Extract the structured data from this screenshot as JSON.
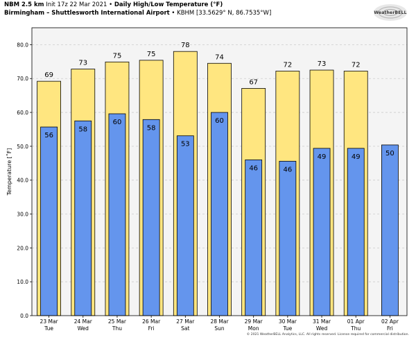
{
  "header": {
    "line1_model": "NBM 2.5 km",
    "line1_init": "Init 17z 22 Mar 2021",
    "line1_sep": "•",
    "line1_product": "Daily High/Low Temperature (°F)",
    "line2_station": "Birmingham – Shuttlesworth International Airport",
    "line2_id": "• KBHM [33.5629° N, 86.7535°W]"
  },
  "logo": {
    "text": "WeatherBELL",
    "icon": "weatherbell-swirl-logo"
  },
  "copyright": "© 2021 WeatherBELL Analytics, LLC. All rights reserved. License required for commercial distribution.",
  "colors": {
    "high_fill": "#ffe680",
    "low_fill": "#6495ed",
    "bar_edge": "#000000",
    "plot_bg": "#f4f4f4",
    "grid": "#cccccc"
  },
  "chart_data": {
    "type": "bar",
    "title": "Daily High/Low Temperature (°F)",
    "ylabel": "Temperature [˚F]",
    "xlabel": "",
    "ylim": [
      0,
      85
    ],
    "yticks": [
      "0.0",
      "10.0",
      "20.0",
      "30.0",
      "40.0",
      "50.0",
      "60.0",
      "70.0",
      "80.0"
    ],
    "ytick_values": [
      0,
      10,
      20,
      30,
      40,
      50,
      60,
      70,
      80
    ],
    "grid": "horizontal dashed",
    "categories": [
      {
        "date": "23 Mar",
        "day": "Tue"
      },
      {
        "date": "24 Mar",
        "day": "Wed"
      },
      {
        "date": "25 Mar",
        "day": "Thu"
      },
      {
        "date": "26 Mar",
        "day": "Fri"
      },
      {
        "date": "27 Mar",
        "day": "Sat"
      },
      {
        "date": "28 Mar",
        "day": "Sun"
      },
      {
        "date": "29 Mar",
        "day": "Mon"
      },
      {
        "date": "30 Mar",
        "day": "Tue"
      },
      {
        "date": "31 Mar",
        "day": "Wed"
      },
      {
        "date": "01 Apr",
        "day": "Thu"
      },
      {
        "date": "02 Apr",
        "day": "Fri"
      }
    ],
    "series": [
      {
        "key": "high",
        "values": [
          69.2,
          72.8,
          74.9,
          75.4,
          78.0,
          74.5,
          67.1,
          72.2,
          72.5,
          72.2,
          null
        ],
        "labels": [
          "69",
          "73",
          "75",
          "75",
          "78",
          "74",
          "67",
          "72",
          "73",
          "72",
          ""
        ]
      },
      {
        "key": "low",
        "values": [
          55.7,
          57.5,
          59.6,
          57.9,
          53.1,
          60.0,
          46.0,
          45.6,
          49.4,
          49.4,
          50.4
        ],
        "labels": [
          "56",
          "58",
          "60",
          "58",
          "53",
          "60",
          "46",
          "46",
          "49",
          "49",
          "50"
        ]
      }
    ]
  }
}
